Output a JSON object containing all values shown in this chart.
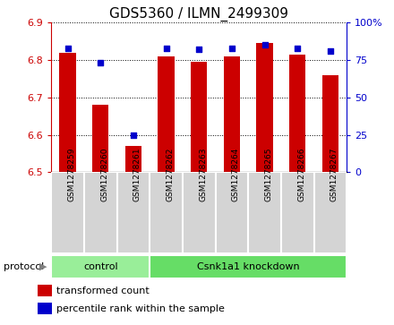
{
  "title": "GDS5360 / ILMN_2499309",
  "samples": [
    "GSM1278259",
    "GSM1278260",
    "GSM1278261",
    "GSM1278262",
    "GSM1278263",
    "GSM1278264",
    "GSM1278265",
    "GSM1278266",
    "GSM1278267"
  ],
  "transformed_counts": [
    6.82,
    6.68,
    6.57,
    6.81,
    6.795,
    6.81,
    6.845,
    6.815,
    6.76
  ],
  "percentile_ranks": [
    83,
    73,
    25,
    83,
    82,
    83,
    85,
    83,
    81
  ],
  "ylim_left": [
    6.5,
    6.9
  ],
  "ylim_right": [
    0,
    100
  ],
  "yticks_left": [
    6.5,
    6.6,
    6.7,
    6.8,
    6.9
  ],
  "yticks_right": [
    0,
    25,
    50,
    75,
    100
  ],
  "bar_color": "#cc0000",
  "dot_color": "#0000cc",
  "bar_width": 0.5,
  "protocol_groups": [
    {
      "label": "control",
      "indices": [
        0,
        1,
        2
      ],
      "color": "#99ee99"
    },
    {
      "label": "Csnk1a1 knockdown",
      "indices": [
        3,
        4,
        5,
        6,
        7,
        8
      ],
      "color": "#66dd66"
    }
  ],
  "protocol_label": "protocol",
  "legend_items": [
    {
      "label": "transformed count",
      "color": "#cc0000"
    },
    {
      "label": "percentile rank within the sample",
      "color": "#0000cc"
    }
  ],
  "sample_box_color": "#d4d4d4",
  "ax_bg": "#ffffff",
  "title_fontsize": 11
}
